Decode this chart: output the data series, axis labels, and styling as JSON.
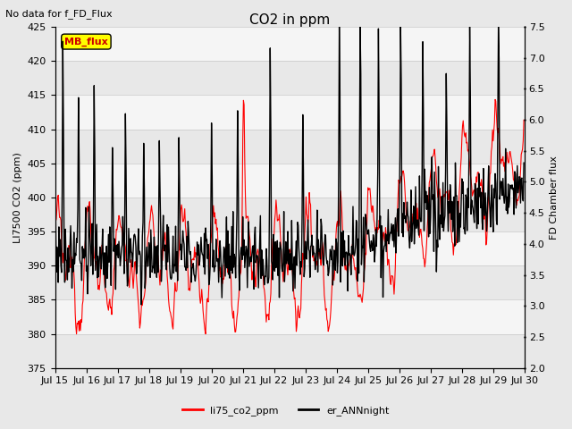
{
  "title": "CO2 in ppm",
  "subtitle": "No data for f_FD_Flux",
  "ylabel_left": "LI7500 CO2 (ppm)",
  "ylabel_right": "FD Chamber flux",
  "ylim_left": [
    375,
    425
  ],
  "ylim_right": [
    2.0,
    7.5
  ],
  "yticks_left": [
    375,
    380,
    385,
    390,
    395,
    400,
    405,
    410,
    415,
    420,
    425
  ],
  "yticks_right": [
    2.0,
    2.5,
    3.0,
    3.5,
    4.0,
    4.5,
    5.0,
    5.5,
    6.0,
    6.5,
    7.0,
    7.5
  ],
  "xtick_labels": [
    "Jul 15",
    "Jul 16",
    "Jul 17",
    "Jul 18",
    "Jul 19",
    "Jul 20",
    "Jul 21",
    "Jul 22",
    "Jul 23",
    "Jul 24",
    "Jul 25",
    "Jul 26",
    "Jul 27",
    "Jul 28",
    "Jul 29",
    "Jul 30"
  ],
  "color_red": "#ff0000",
  "color_black": "#000000",
  "color_mb_box": "#ffff00",
  "color_mb_text": "#cc0000",
  "legend_labels": [
    "li75_co2_ppm",
    "er_ANNnight"
  ],
  "background_color": "#e8e8e8",
  "band_colors": [
    "#e8e8e8",
    "#f5f5f5"
  ],
  "grid_line_color": "#c8c8c8",
  "mb_flux_text": "MB_flux",
  "linewidth_red": 0.8,
  "linewidth_black": 1.0,
  "title_fontsize": 11,
  "label_fontsize": 8,
  "tick_fontsize": 8,
  "figwidth": 6.4,
  "figheight": 4.8,
  "dpi": 100
}
